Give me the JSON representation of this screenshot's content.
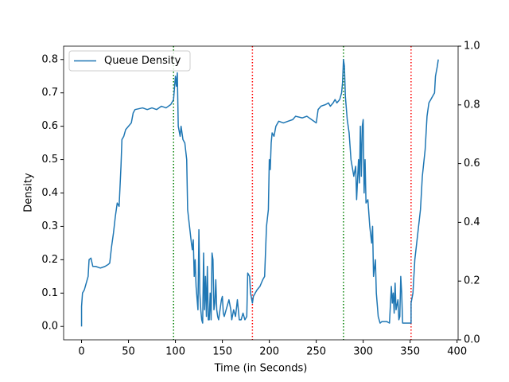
{
  "chart_data": {
    "type": "line",
    "x_label": "Time (in Seconds)",
    "y_label": "Density",
    "x": [
      0,
      0,
      1,
      3,
      5,
      7,
      8,
      10,
      12,
      15,
      20,
      25,
      28,
      30,
      32,
      34,
      36,
      38,
      40,
      41,
      42,
      43,
      45,
      47,
      50,
      53,
      55,
      57,
      65,
      70,
      75,
      80,
      85,
      90,
      95,
      98,
      100,
      101,
      102,
      103,
      105,
      106,
      108,
      110,
      112,
      113,
      115,
      117,
      118,
      119,
      120,
      121,
      122,
      124,
      125,
      126,
      127,
      128,
      129,
      130,
      131,
      132,
      133,
      134,
      135,
      136,
      137,
      138,
      139,
      140,
      141,
      142,
      143,
      144,
      145,
      146,
      148,
      149,
      150,
      151,
      152,
      155,
      157,
      159,
      160,
      162,
      164,
      166,
      168,
      170,
      172,
      174,
      176,
      177,
      179,
      180,
      182,
      183,
      185,
      187,
      190,
      193,
      195,
      197,
      199,
      200,
      201,
      202,
      203,
      205,
      207,
      210,
      215,
      220,
      225,
      228,
      235,
      240,
      245,
      250,
      252,
      255,
      260,
      263,
      265,
      268,
      270,
      272,
      275,
      277,
      278,
      279,
      280,
      281,
      283,
      285,
      287,
      290,
      292,
      293,
      295,
      296,
      297,
      298,
      299,
      300,
      301,
      302,
      303,
      305,
      307,
      309,
      310,
      311,
      313,
      314,
      316,
      318,
      320,
      325,
      328,
      330,
      331,
      332,
      333,
      334,
      335,
      337,
      338,
      339,
      340,
      341,
      342,
      345,
      351,
      351,
      353,
      355,
      357,
      359,
      361,
      363,
      366,
      368,
      370,
      372,
      374,
      376,
      377,
      379,
      380
    ],
    "series": [
      {
        "name": "Queue Density",
        "color": "#1f77b4",
        "values": [
          0,
          0.06,
          0.1,
          0.11,
          0.13,
          0.15,
          0.2,
          0.205,
          0.18,
          0.18,
          0.175,
          0.18,
          0.185,
          0.19,
          0.24,
          0.28,
          0.33,
          0.37,
          0.36,
          0.42,
          0.48,
          0.56,
          0.57,
          0.59,
          0.6,
          0.61,
          0.64,
          0.65,
          0.655,
          0.65,
          0.655,
          0.65,
          0.66,
          0.655,
          0.665,
          0.68,
          0.75,
          0.72,
          0.76,
          0.6,
          0.57,
          0.6,
          0.56,
          0.55,
          0.5,
          0.35,
          0.3,
          0.25,
          0.23,
          0.26,
          0.15,
          0.2,
          0.12,
          0.05,
          0.29,
          0.1,
          0.05,
          0.02,
          0.01,
          0.22,
          0.05,
          0.15,
          0.03,
          0.18,
          0.02,
          0.02,
          0.1,
          0.02,
          0.22,
          0.2,
          0.05,
          0.07,
          0.14,
          0.05,
          0.03,
          0.02,
          0.06,
          0.08,
          0.09,
          0.04,
          0.03,
          0.06,
          0.08,
          0.05,
          0.02,
          0.05,
          0.03,
          0.08,
          0.02,
          0.02,
          0.04,
          0.02,
          0.03,
          0.16,
          0.15,
          0.1,
          0.07,
          0.09,
          0.1,
          0.11,
          0.12,
          0.14,
          0.15,
          0.3,
          0.35,
          0.5,
          0.47,
          0.55,
          0.58,
          0.57,
          0.6,
          0.615,
          0.61,
          0.615,
          0.62,
          0.63,
          0.625,
          0.63,
          0.62,
          0.61,
          0.65,
          0.66,
          0.665,
          0.67,
          0.66,
          0.67,
          0.68,
          0.67,
          0.68,
          0.7,
          0.73,
          0.8,
          0.78,
          0.69,
          0.62,
          0.58,
          0.5,
          0.45,
          0.48,
          0.38,
          0.5,
          0.43,
          0.6,
          0.45,
          0.6,
          0.62,
          0.4,
          0.5,
          0.37,
          0.38,
          0.3,
          0.25,
          0.3,
          0.15,
          0.2,
          0.1,
          0.03,
          0.01,
          0.015,
          0.015,
          0.01,
          0.12,
          0.07,
          0.1,
          0.04,
          0.13,
          0.05,
          0.08,
          0.02,
          0.03,
          0.15,
          0.1,
          0.01,
          0.01,
          0.01,
          0.07,
          0.1,
          0.2,
          0.25,
          0.3,
          0.35,
          0.45,
          0.53,
          0.63,
          0.67,
          0.68,
          0.69,
          0.7,
          0.75,
          0.78,
          0.8
        ]
      }
    ],
    "vlines": [
      {
        "x": 98,
        "color": "#008000"
      },
      {
        "x": 182,
        "color": "#ff0000"
      },
      {
        "x": 279,
        "color": "#008000"
      },
      {
        "x": 351,
        "color": "#ff0000"
      }
    ],
    "xlim": [
      -19.1,
      401.1
    ],
    "xticks": [
      0,
      50,
      100,
      150,
      200,
      250,
      300,
      350,
      400
    ],
    "ylim": [
      -0.04,
      0.84
    ],
    "yticks": [
      {
        "value": 0,
        "label": "0.0"
      },
      0.1,
      0.2,
      0.3,
      0.4,
      0.5,
      0.6,
      0.7,
      0.8
    ],
    "y2lim": [
      0,
      1
    ],
    "y2ticks": [
      {
        "value": 0,
        "label": "0.0"
      },
      0.2,
      0.4,
      0.6,
      0.8,
      {
        "value": 1,
        "label": "1.0"
      }
    ],
    "legend": "upper left"
  }
}
